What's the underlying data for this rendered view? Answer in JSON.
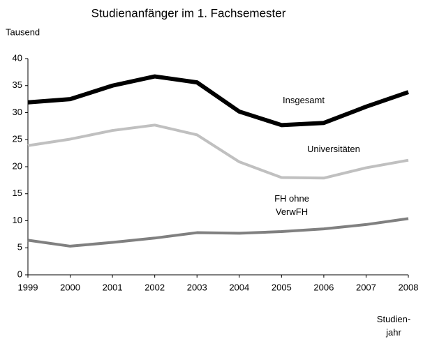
{
  "chart_data": {
    "type": "line",
    "title": "Studienanfänger im 1. Fachsemester",
    "y_label": "Tausend",
    "x_label": "Studien-jahr",
    "x": [
      1999,
      2000,
      2001,
      2002,
      2003,
      2004,
      2005,
      2006,
      2007,
      2008
    ],
    "xlim": [
      1999,
      2008
    ],
    "xticks": [
      1999,
      2000,
      2001,
      2002,
      2003,
      2004,
      2005,
      2006,
      2007,
      2008
    ],
    "ylim": [
      0,
      40
    ],
    "yticks": [
      0,
      5,
      10,
      15,
      20,
      25,
      30,
      35,
      40
    ],
    "grid": false,
    "series": [
      {
        "name": "Insgesamt",
        "color": "#000000",
        "values": [
          31.9,
          32.5,
          35.0,
          36.7,
          35.6,
          30.2,
          27.7,
          28.1,
          31.1,
          33.8
        ]
      },
      {
        "name": "Universitäten",
        "color": "#c0c0c0",
        "values": [
          23.9,
          25.1,
          26.7,
          27.7,
          25.9,
          20.9,
          18.0,
          17.9,
          19.8,
          21.2
        ]
      },
      {
        "name": "FH ohne VerwFH",
        "color": "#808080",
        "values": [
          6.4,
          5.3,
          6.0,
          6.8,
          7.8,
          7.7,
          8.0,
          8.5,
          9.3,
          10.4
        ]
      }
    ]
  }
}
